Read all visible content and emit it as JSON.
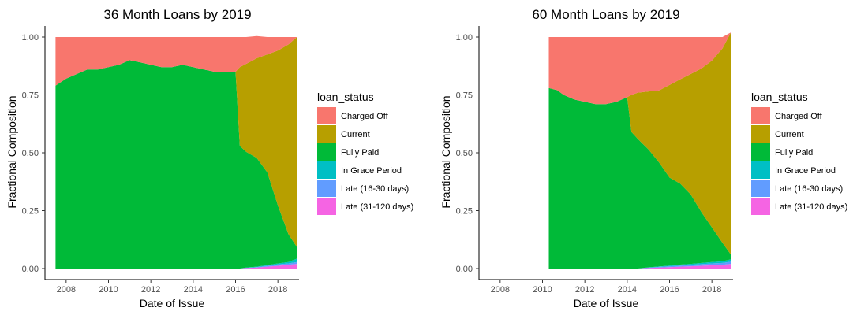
{
  "chart_data": [
    {
      "type": "area",
      "stacked": "fill",
      "title": "36 Month Loans by 2019",
      "xlabel": "Date of Issue",
      "ylabel": "Fractional Composition",
      "xlim": [
        2007.0,
        2019.0
      ],
      "ylim": [
        0,
        1
      ],
      "x_ticks": [
        "2008",
        "2010",
        "2012",
        "2014",
        "2016",
        "2018"
      ],
      "y_ticks": [
        "0.00",
        "0.25",
        "0.50",
        "0.75",
        "1.00"
      ],
      "grid": false,
      "legend_position": "right",
      "legend_title": "loan_status",
      "x": [
        2007.5,
        2008.0,
        2008.5,
        2009.0,
        2009.5,
        2010.0,
        2010.5,
        2011.0,
        2011.5,
        2012.0,
        2012.5,
        2013.0,
        2013.5,
        2014.0,
        2014.5,
        2015.0,
        2015.5,
        2016.0,
        2016.2,
        2016.5,
        2017.0,
        2017.5,
        2018.0,
        2018.5,
        2018.9
      ],
      "series": [
        {
          "name": "Late (31-120 days)",
          "color": "#F564E3",
          "values": [
            0,
            0,
            0,
            0,
            0,
            0,
            0,
            0,
            0,
            0,
            0,
            0,
            0,
            0,
            0,
            0,
            0,
            0,
            0,
            0.002,
            0.004,
            0.008,
            0.012,
            0.016,
            0.02
          ]
        },
        {
          "name": "Late (16-30 days)",
          "color": "#619CFF",
          "values": [
            0,
            0,
            0,
            0,
            0,
            0,
            0,
            0,
            0,
            0,
            0,
            0,
            0,
            0,
            0,
            0,
            0,
            0,
            0,
            0.001,
            0.002,
            0.004,
            0.006,
            0.006,
            0.008
          ]
        },
        {
          "name": "In Grace Period",
          "color": "#00BFC4",
          "values": [
            0,
            0,
            0,
            0,
            0,
            0,
            0,
            0,
            0,
            0,
            0,
            0,
            0,
            0,
            0,
            0,
            0,
            0,
            0,
            0.001,
            0.002,
            0.003,
            0.004,
            0.006,
            0.015
          ]
        },
        {
          "name": "Fully Paid",
          "color": "#00BA38",
          "values": [
            0.79,
            0.82,
            0.84,
            0.86,
            0.86,
            0.87,
            0.88,
            0.9,
            0.89,
            0.88,
            0.87,
            0.87,
            0.88,
            0.87,
            0.86,
            0.85,
            0.85,
            0.85,
            0.53,
            0.5,
            0.47,
            0.4,
            0.25,
            0.12,
            0.05
          ]
        },
        {
          "name": "Current",
          "color": "#B79F00",
          "values": [
            0,
            0,
            0,
            0,
            0,
            0,
            0,
            0,
            0,
            0,
            0,
            0,
            0,
            0,
            0,
            0,
            0,
            0,
            0.34,
            0.38,
            0.43,
            0.51,
            0.67,
            0.82,
            0.907
          ]
        },
        {
          "name": "Charged Off",
          "color": "#F8766D",
          "values": [
            0.21,
            0.18,
            0.16,
            0.14,
            0.14,
            0.13,
            0.12,
            0.1,
            0.11,
            0.12,
            0.13,
            0.13,
            0.12,
            0.13,
            0.14,
            0.15,
            0.15,
            0.15,
            0.13,
            0.116,
            0.096,
            0.075,
            0.058,
            0.032,
            0
          ]
        }
      ]
    },
    {
      "type": "area",
      "stacked": "fill",
      "title": "60 Month Loans by 2019",
      "xlabel": "Date of Issue",
      "ylabel": "Fractional Composition",
      "xlim": [
        2007.0,
        2019.0
      ],
      "ylim": [
        0,
        1
      ],
      "x_ticks": [
        "2008",
        "2010",
        "2012",
        "2014",
        "2016",
        "2018"
      ],
      "y_ticks": [
        "0.00",
        "0.25",
        "0.50",
        "0.75",
        "1.00"
      ],
      "grid": false,
      "legend_position": "right",
      "legend_title": "loan_status",
      "x": [
        2010.3,
        2010.7,
        2011.0,
        2011.5,
        2012.0,
        2012.5,
        2013.0,
        2013.5,
        2014.0,
        2014.2,
        2014.5,
        2015.0,
        2015.5,
        2016.0,
        2016.5,
        2017.0,
        2017.5,
        2018.0,
        2018.5,
        2018.9
      ],
      "series": [
        {
          "name": "Late (31-120 days)",
          "color": "#F564E3",
          "values": [
            0,
            0,
            0,
            0,
            0,
            0,
            0,
            0,
            0,
            0,
            0,
            0.002,
            0.004,
            0.006,
            0.008,
            0.01,
            0.012,
            0.014,
            0.016,
            0.02
          ]
        },
        {
          "name": "Late (16-30 days)",
          "color": "#619CFF",
          "values": [
            0,
            0,
            0,
            0,
            0,
            0,
            0,
            0,
            0,
            0,
            0,
            0.002,
            0.003,
            0.004,
            0.005,
            0.006,
            0.007,
            0.008,
            0.008,
            0.01
          ]
        },
        {
          "name": "In Grace Period",
          "color": "#00BFC4",
          "values": [
            0,
            0,
            0,
            0,
            0,
            0,
            0,
            0,
            0,
            0,
            0,
            0.001,
            0.002,
            0.003,
            0.004,
            0.004,
            0.005,
            0.006,
            0.007,
            0.01
          ]
        },
        {
          "name": "Fully Paid",
          "color": "#00BA38",
          "values": [
            0.78,
            0.77,
            0.75,
            0.73,
            0.72,
            0.71,
            0.71,
            0.72,
            0.74,
            0.59,
            0.56,
            0.51,
            0.45,
            0.38,
            0.35,
            0.3,
            0.22,
            0.15,
            0.08,
            0.02
          ]
        },
        {
          "name": "Current",
          "color": "#B79F00",
          "values": [
            0,
            0,
            0,
            0,
            0,
            0,
            0,
            0,
            0,
            0.16,
            0.2,
            0.25,
            0.31,
            0.4,
            0.45,
            0.52,
            0.62,
            0.72,
            0.84,
            0.96
          ]
        },
        {
          "name": "Charged Off",
          "color": "#F8766D",
          "values": [
            0.22,
            0.23,
            0.25,
            0.27,
            0.28,
            0.29,
            0.29,
            0.28,
            0.26,
            0.25,
            0.24,
            0.235,
            0.231,
            0.207,
            0.183,
            0.16,
            0.136,
            0.102,
            0.049,
            0
          ]
        }
      ]
    }
  ]
}
